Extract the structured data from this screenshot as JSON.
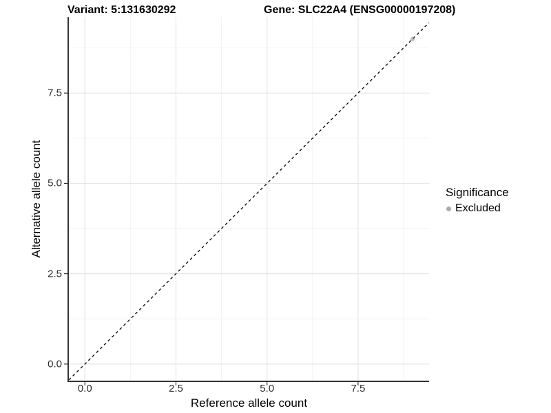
{
  "header": {
    "variant_title": "Variant: 5:131630292",
    "gene_title": "Gene: SLC22A4 (ENSG00000197208)"
  },
  "chart_data": {
    "type": "scatter",
    "title_left": "Variant: 5:131630292",
    "title_right": "Gene: SLC22A4 (ENSG00000197208)",
    "xlabel": "Reference allele count",
    "ylabel": "Alternative allele count",
    "xlim": [
      -0.44,
      9.45
    ],
    "ylim": [
      -0.46,
      9.6
    ],
    "x_ticks": [
      0.0,
      2.5,
      5.0,
      7.5
    ],
    "y_ticks": [
      0.0,
      2.5,
      5.0,
      7.5
    ],
    "x_tick_labels": [
      "0.0",
      "2.5",
      "5.0",
      "7.5"
    ],
    "y_tick_labels": [
      "0.0",
      "2.5",
      "5.0",
      "7.5"
    ],
    "x_minor_ticks": [
      1.25,
      3.75,
      6.25,
      8.75
    ],
    "y_minor_ticks": [
      1.25,
      3.75,
      6.25,
      8.75
    ],
    "grid": true,
    "legend_position": "right",
    "reference_line": {
      "kind": "abline",
      "slope": 1,
      "intercept": 0,
      "style": "dashed",
      "color": "#000000"
    },
    "series": [
      {
        "name": "Excluded",
        "points": [
          [
            9,
            9
          ]
        ],
        "color": "#7f7f7f",
        "opacity": 0.5,
        "radius": 3.2
      }
    ],
    "legend": {
      "title": "Significance",
      "items": [
        {
          "label": "Excluded",
          "color": "#ababab"
        }
      ]
    },
    "style": {
      "grid_major_color": "#e6e6e6",
      "grid_minor_color": "#f2f2f2",
      "axis_line_color": "#333333",
      "tick_color": "#333333",
      "background": "#ffffff"
    }
  }
}
